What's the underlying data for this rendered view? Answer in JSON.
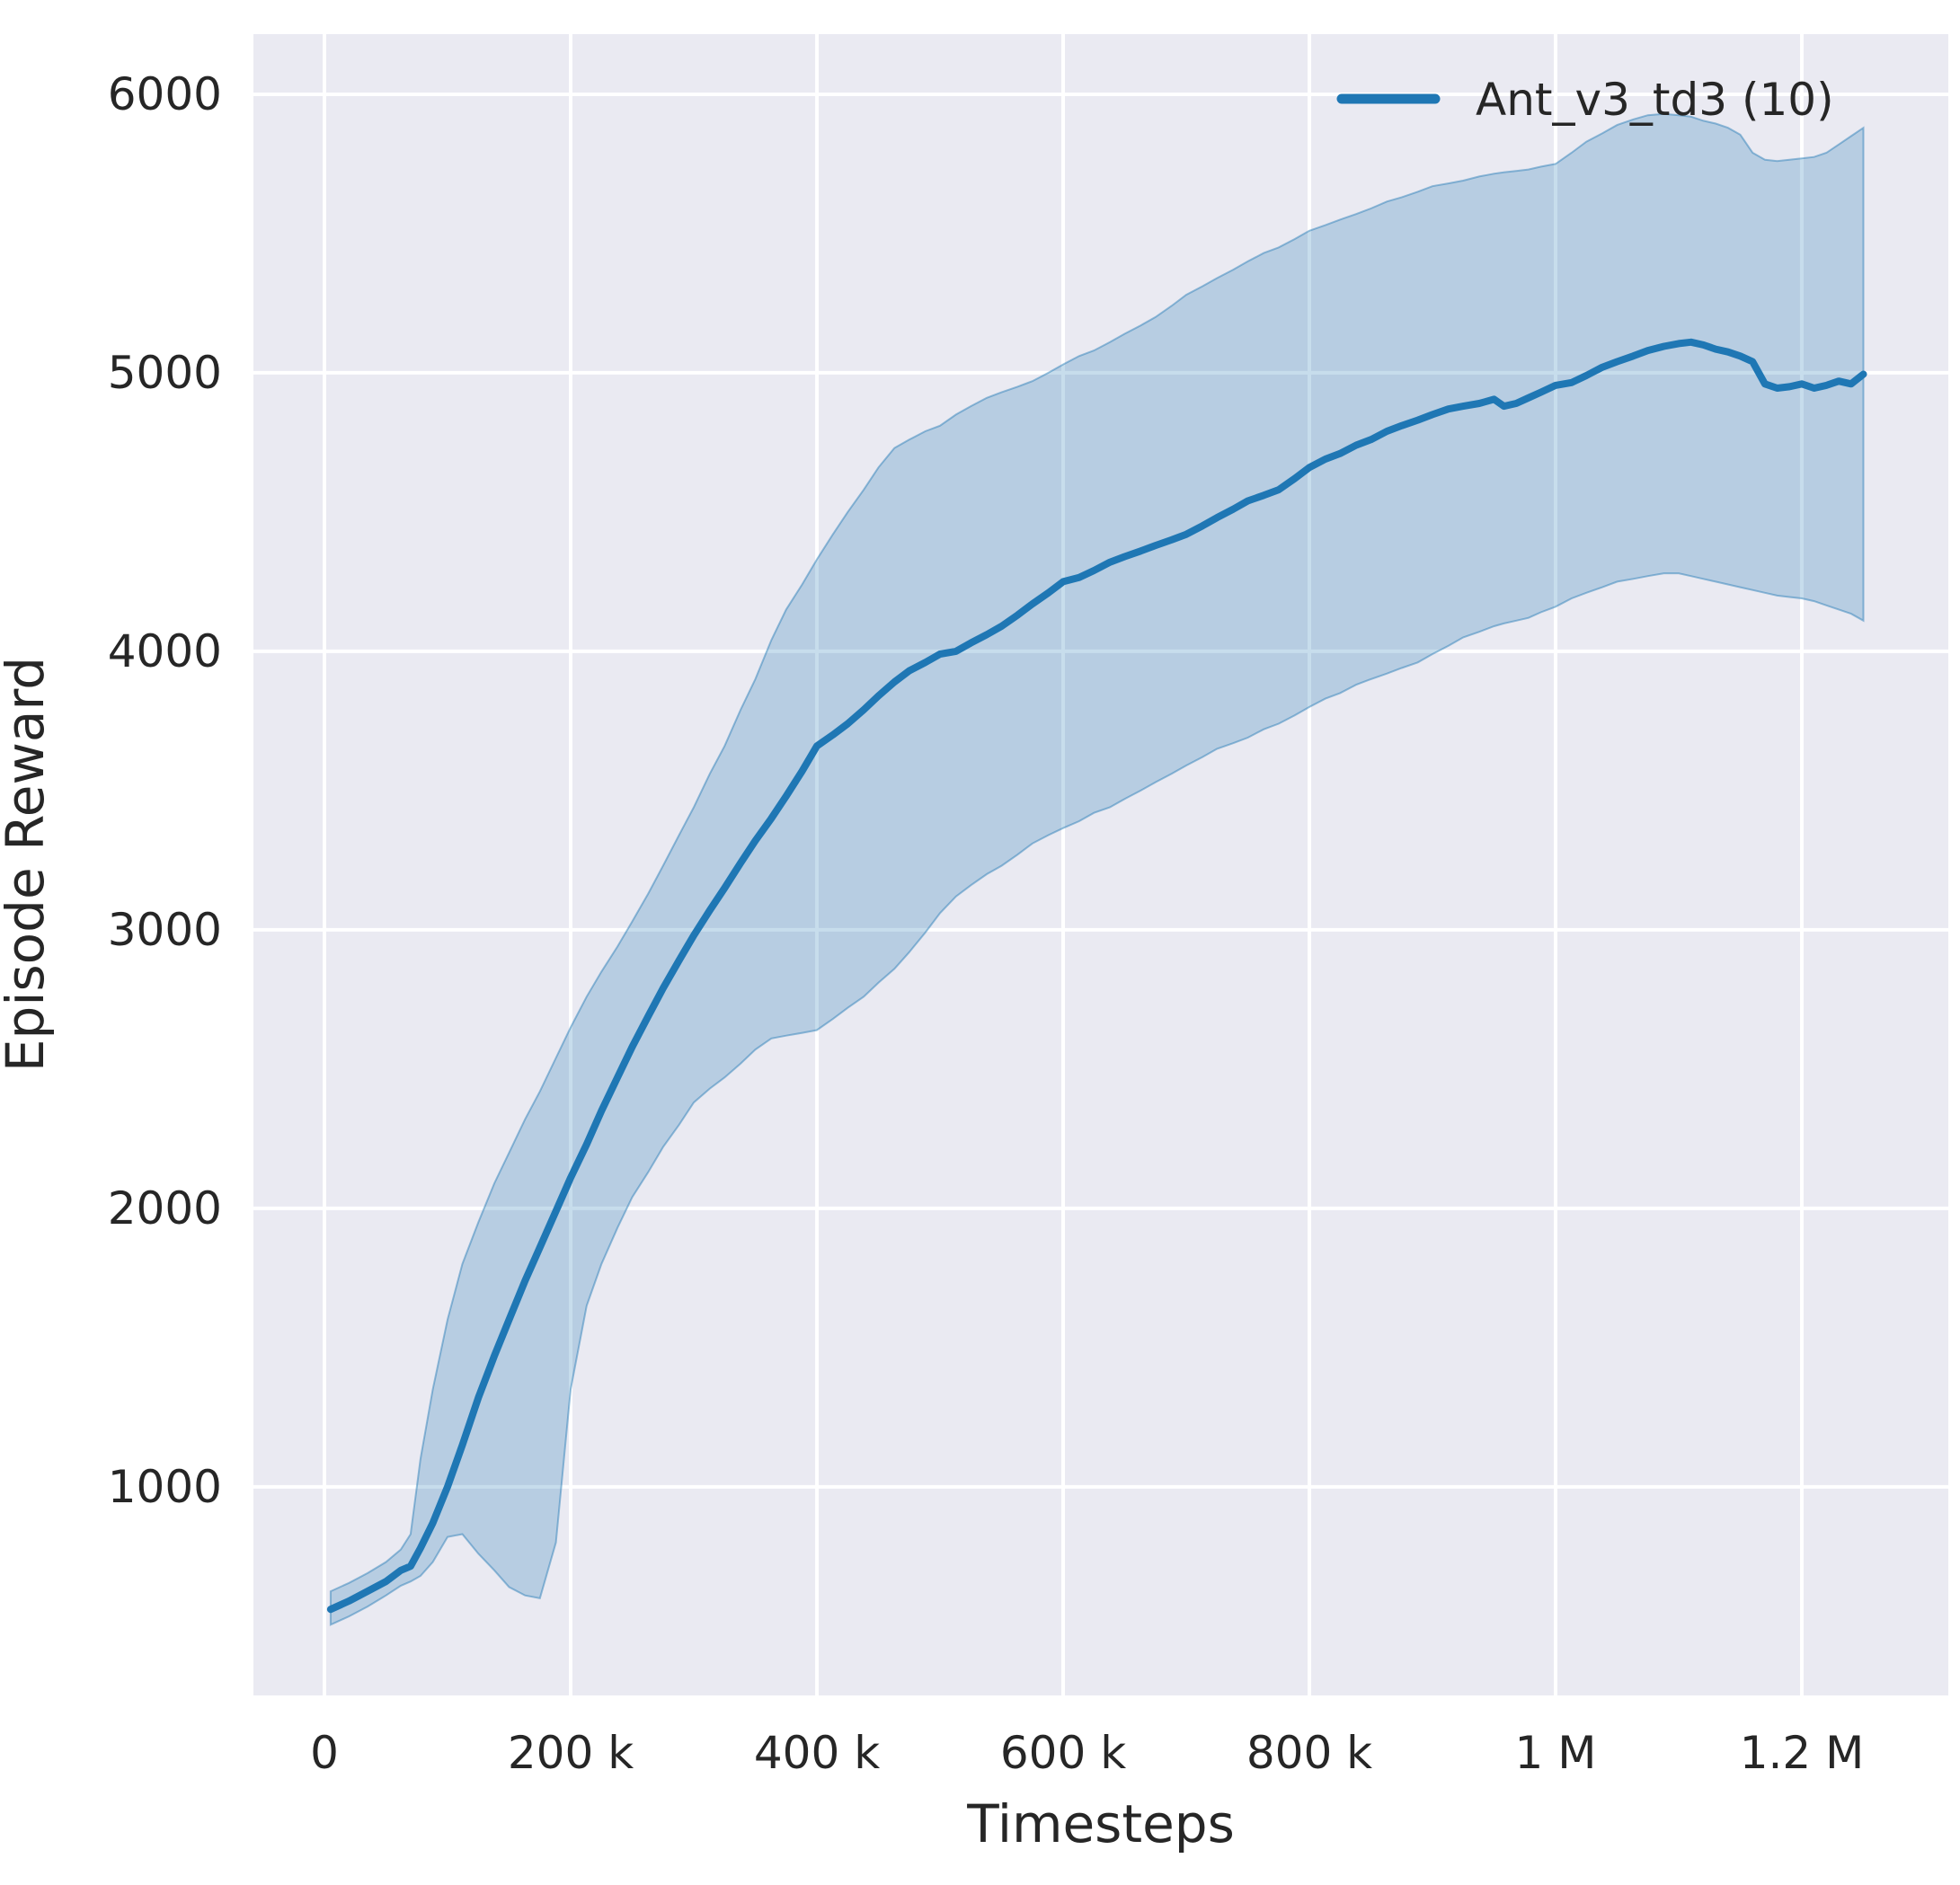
{
  "chart_data": {
    "type": "line",
    "title": "",
    "xlabel": "Timesteps",
    "ylabel": "Episode Reward",
    "grid": true,
    "legend_position": "upper right",
    "xlim": [
      -57700,
      1319000
    ],
    "ylim": [
      251,
      6216
    ],
    "xticks": {
      "values": [
        0,
        200000,
        400000,
        600000,
        800000,
        1000000,
        1200000
      ],
      "labels": [
        "0",
        "200 k",
        "400 k",
        "600 k",
        "800 k",
        "1 M",
        "1.2 M"
      ]
    },
    "yticks": {
      "values": [
        1000,
        2000,
        3000,
        4000,
        5000,
        6000
      ],
      "labels": [
        "1000",
        "2000",
        "3000",
        "4000",
        "5000",
        "6000"
      ]
    },
    "styles": {
      "plot_background": "#eaeaf2",
      "gridline_color": "#ffffff",
      "text_color": "#262626",
      "line_color": "#1f77b4",
      "band_fill_opacity": 0.25,
      "band_edge_opacity": 0.45
    },
    "series": [
      {
        "name": "Ant_v3_td3 (10)",
        "color": "#1f77b4",
        "band": "min-max over seeds",
        "x": [
          5000,
          20000,
          35000,
          50000,
          62000,
          70000,
          78000,
          88000,
          100000,
          112000,
          125000,
          138000,
          150000,
          163000,
          175000,
          188000,
          200000,
          213000,
          225000,
          238000,
          250000,
          263000,
          275000,
          288000,
          300000,
          313000,
          325000,
          338000,
          350000,
          363000,
          375000,
          388000,
          400000,
          413000,
          425000,
          438000,
          450000,
          463000,
          475000,
          488000,
          500000,
          513000,
          525000,
          538000,
          550000,
          563000,
          575000,
          588000,
          600000,
          613000,
          625000,
          638000,
          650000,
          663000,
          675000,
          688000,
          700000,
          713000,
          725000,
          738000,
          750000,
          763000,
          775000,
          788000,
          800000,
          813000,
          825000,
          838000,
          850000,
          863000,
          875000,
          888000,
          900000,
          913000,
          925000,
          938000,
          950000,
          958000,
          968000,
          978000,
          988000,
          1000000,
          1013000,
          1025000,
          1038000,
          1050000,
          1063000,
          1075000,
          1088000,
          1100000,
          1110000,
          1120000,
          1130000,
          1140000,
          1150000,
          1160000,
          1170000,
          1180000,
          1190000,
          1200000,
          1210000,
          1220000,
          1230000,
          1240000,
          1250000
        ],
        "mean": [
          560,
          590,
          625,
          660,
          700,
          715,
          780,
          870,
          1000,
          1150,
          1320,
          1470,
          1600,
          1740,
          1860,
          1990,
          2110,
          2230,
          2350,
          2470,
          2580,
          2690,
          2790,
          2890,
          2980,
          3070,
          3150,
          3240,
          3320,
          3400,
          3480,
          3570,
          3660,
          3700,
          3740,
          3790,
          3840,
          3890,
          3930,
          3960,
          3990,
          4000,
          4030,
          4060,
          4090,
          4130,
          4170,
          4210,
          4250,
          4265,
          4290,
          4320,
          4340,
          4360,
          4380,
          4400,
          4420,
          4450,
          4480,
          4510,
          4540,
          4560,
          4580,
          4620,
          4660,
          4690,
          4710,
          4740,
          4760,
          4790,
          4810,
          4830,
          4850,
          4870,
          4880,
          4890,
          4905,
          4880,
          4890,
          4910,
          4930,
          4955,
          4965,
          4990,
          5020,
          5040,
          5060,
          5080,
          5095,
          5105,
          5110,
          5100,
          5085,
          5075,
          5060,
          5040,
          4960,
          4945,
          4950,
          4960,
          4945,
          4955,
          4970,
          4960,
          4995
        ],
        "band_lower": [
          505,
          535,
          570,
          610,
          645,
          660,
          680,
          730,
          820,
          830,
          760,
          700,
          640,
          610,
          600,
          800,
          1350,
          1650,
          1800,
          1930,
          2040,
          2130,
          2220,
          2300,
          2380,
          2430,
          2470,
          2520,
          2570,
          2610,
          2620,
          2630,
          2640,
          2680,
          2720,
          2760,
          2810,
          2860,
          2920,
          2990,
          3060,
          3120,
          3160,
          3200,
          3230,
          3270,
          3310,
          3340,
          3365,
          3390,
          3420,
          3440,
          3470,
          3500,
          3530,
          3560,
          3590,
          3620,
          3650,
          3670,
          3690,
          3720,
          3740,
          3770,
          3800,
          3830,
          3850,
          3880,
          3900,
          3920,
          3940,
          3960,
          3990,
          4020,
          4050,
          4070,
          4090,
          4100,
          4110,
          4120,
          4140,
          4160,
          4190,
          4210,
          4230,
          4250,
          4260,
          4270,
          4280,
          4280,
          4270,
          4260,
          4250,
          4240,
          4230,
          4220,
          4210,
          4200,
          4195,
          4190,
          4180,
          4165,
          4150,
          4135,
          4110
        ],
        "band_upper": [
          625,
          655,
          690,
          730,
          775,
          830,
          1100,
          1350,
          1600,
          1800,
          1950,
          2090,
          2200,
          2320,
          2420,
          2540,
          2650,
          2760,
          2850,
          2940,
          3030,
          3130,
          3230,
          3340,
          3440,
          3560,
          3660,
          3790,
          3900,
          4040,
          4150,
          4240,
          4330,
          4420,
          4500,
          4580,
          4660,
          4730,
          4760,
          4790,
          4810,
          4850,
          4880,
          4910,
          4930,
          4950,
          4970,
          5000,
          5030,
          5060,
          5080,
          5110,
          5140,
          5170,
          5200,
          5240,
          5280,
          5310,
          5340,
          5370,
          5400,
          5430,
          5450,
          5480,
          5510,
          5530,
          5550,
          5570,
          5590,
          5615,
          5630,
          5650,
          5670,
          5680,
          5690,
          5705,
          5715,
          5720,
          5725,
          5730,
          5740,
          5750,
          5790,
          5830,
          5860,
          5890,
          5910,
          5925,
          5930,
          5925,
          5920,
          5905,
          5895,
          5880,
          5855,
          5790,
          5765,
          5760,
          5765,
          5770,
          5775,
          5790,
          5820,
          5850,
          5880
        ]
      }
    ]
  }
}
